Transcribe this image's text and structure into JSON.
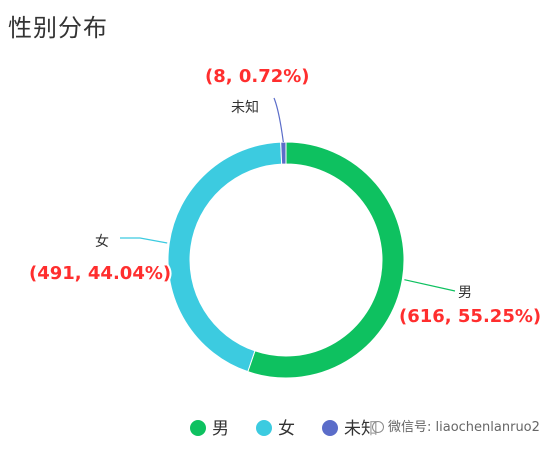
{
  "title": "性别分布",
  "chart_data": {
    "type": "pie",
    "variant": "donut",
    "title": "性别分布",
    "legend_position": "bottom",
    "slices": [
      {
        "name": "男",
        "value": 616,
        "percent": 55.25,
        "label": "(616, 55.25%)",
        "color": "#0ec160"
      },
      {
        "name": "女",
        "value": 491,
        "percent": 44.04,
        "label": "(491, 44.04%)",
        "color": "#3ccbe0"
      },
      {
        "name": "未知",
        "value": 8,
        "percent": 0.72,
        "label": "(8, 0.72%)",
        "color": "#5b6dc9"
      }
    ]
  },
  "watermark": "微信号: liaochenlanruo2"
}
